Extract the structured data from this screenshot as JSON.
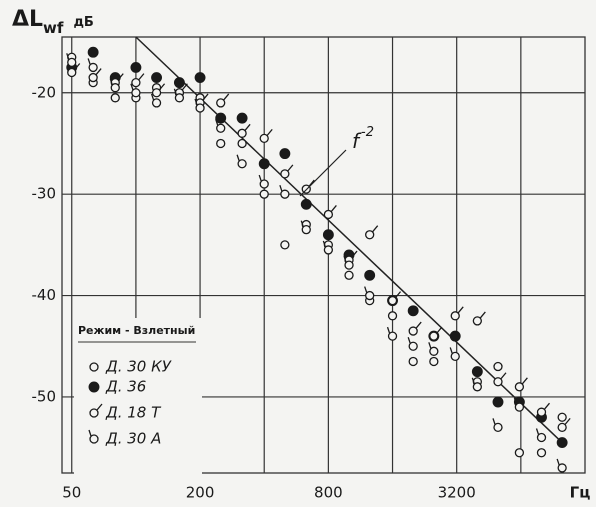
{
  "chart_data": {
    "type": "scatter",
    "title": "ΔL",
    "title_subscript": "wf",
    "y_unit": "дБ",
    "x_label": "Гц",
    "log_x": true,
    "grid": true,
    "xlim": [
      45,
      12800
    ],
    "ylim": [
      -14.5,
      -57.5
    ],
    "xticks": [
      50,
      200,
      800,
      3200
    ],
    "xgrid": [
      50,
      100,
      200,
      400,
      800,
      1600,
      3200,
      6400
    ],
    "yticks": [
      -20,
      -30,
      -40,
      -50
    ],
    "x": [
      50,
      63,
      80,
      100,
      125,
      160,
      200,
      250,
      315,
      400,
      500,
      630,
      800,
      1000,
      1250,
      1600,
      2000,
      2500,
      3150,
      4000,
      5000,
      6300,
      8000,
      10000
    ],
    "legend_title": "Режим - Взлетный",
    "series": [
      {
        "name": "Д. 30 КУ",
        "marker": "open",
        "color": "#1a1a1a",
        "values": [
          -16.5,
          -19,
          -20.5,
          -20.5,
          -19.5,
          -20,
          -20.5,
          -25,
          -25,
          -30,
          -35,
          -33,
          -35,
          -38,
          -40.5,
          -42,
          -46.5,
          -46.5,
          -44,
          -48.5,
          -47,
          -55.5,
          -55.5,
          -52
        ]
      },
      {
        "name": "Д. 36",
        "marker": "filled",
        "color": "#1a1a1a",
        "values": [
          -17.5,
          -16,
          -18.5,
          -17.5,
          -18.5,
          -19,
          -18.5,
          -22.5,
          -22.5,
          -27,
          -26,
          -31,
          -34,
          -36,
          -38,
          -40.5,
          -41.5,
          -44,
          -44,
          -47.5,
          -50.5,
          -50.5,
          -52,
          -54.5
        ]
      },
      {
        "name": "Д. 18 Т",
        "marker": "tail-right",
        "color": "#1a1a1a",
        "values": [
          -18,
          -18.5,
          -19,
          -19,
          -20,
          -20,
          -21,
          -21,
          -24,
          -24.5,
          -28,
          -29.5,
          -32,
          -36.5,
          -34,
          -40.5,
          -43.5,
          -44,
          -42,
          -42.5,
          -48.5,
          -49,
          -51.5,
          -53
        ]
      },
      {
        "name": "Д. 30 А",
        "marker": "tail-left",
        "color": "#1a1a1a",
        "values": [
          -17,
          -17.5,
          -19.5,
          -20,
          -21,
          -20.5,
          -21.5,
          -23.5,
          -27,
          -29,
          -30,
          -33.5,
          -35.5,
          -37,
          -40,
          -44,
          -45,
          -45.5,
          -46,
          -49,
          -53,
          -51,
          -54,
          -57
        ]
      }
    ],
    "reference_line": {
      "label": "f",
      "exponent": "-2",
      "x": [
        100,
        10000
      ],
      "y": [
        -14.5,
        -54.5
      ]
    }
  }
}
